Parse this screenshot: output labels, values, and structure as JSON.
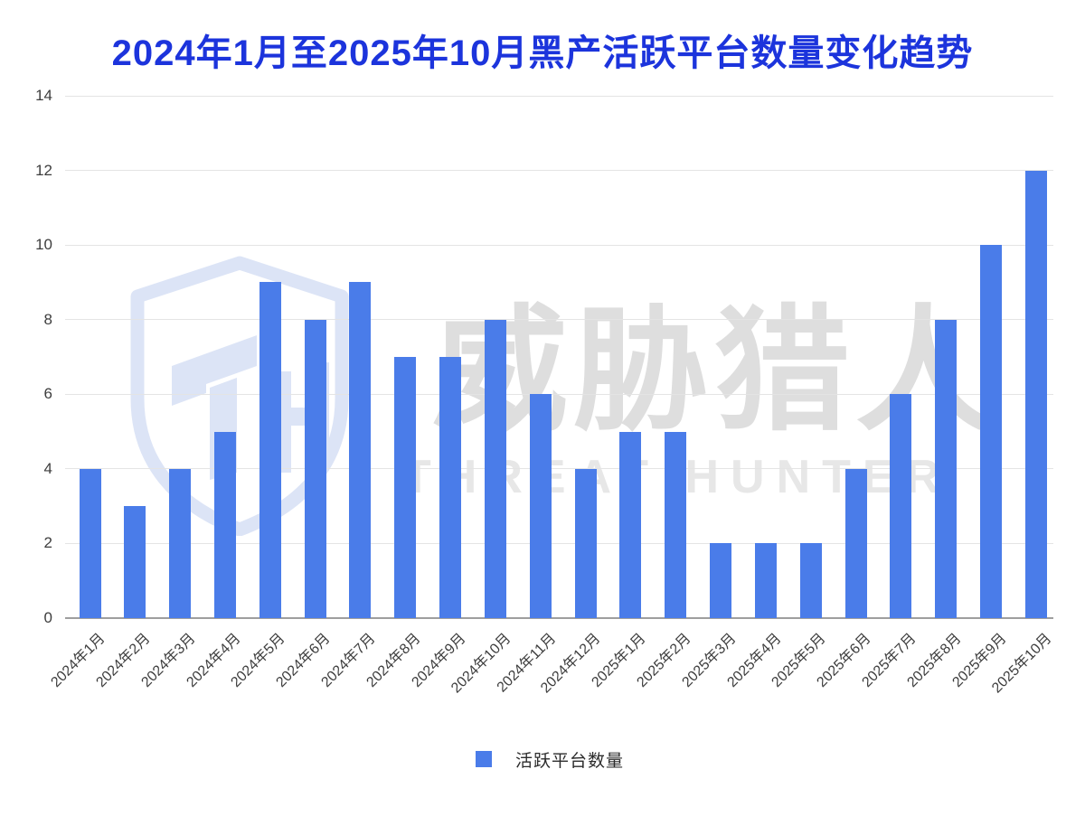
{
  "title": "2024年1月至2025年10月黑产活跃平台数量变化趋势",
  "legend": {
    "label": "活跃平台数量"
  },
  "watermark": {
    "cn": "威胁猎人",
    "en": "THREAT HUNTER",
    "logo": "shield-th-logo"
  },
  "colors": {
    "bar": "#4a7ce9",
    "title": "#1c34dc",
    "grid": "#e4e4e4",
    "axis_baseline": "#9e9e9e",
    "tick_label": "#3d3d3d",
    "watermark_gray": "#dedede",
    "watermark_gray_light": "#e7e7e7",
    "watermark_blue": "#dce4f6"
  },
  "chart_data": {
    "type": "bar",
    "title": "2024年1月至2025年10月黑产活跃平台数量变化趋势",
    "categories": [
      "2024年1月",
      "2024年2月",
      "2024年3月",
      "2024年4月",
      "2024年5月",
      "2024年6月",
      "2024年7月",
      "2024年8月",
      "2024年9月",
      "2024年10月",
      "2024年11月",
      "2024年12月",
      "2025年1月",
      "2025年2月",
      "2025年3月",
      "2025年4月",
      "2025年5月",
      "2025年6月",
      "2025年7月",
      "2025年8月",
      "2025年9月",
      "2025年10月"
    ],
    "series": [
      {
        "name": "活跃平台数量",
        "values": [
          4,
          3,
          4,
          5,
          9,
          8,
          9,
          7,
          7,
          8,
          6,
          4,
          5,
          5,
          2,
          2,
          2,
          4,
          6,
          8,
          10,
          12
        ]
      }
    ],
    "xlabel": "",
    "ylabel": "",
    "ylim": [
      0,
      14
    ],
    "yticks": [
      0,
      2,
      4,
      6,
      8,
      10,
      12,
      14
    ],
    "grid": true,
    "legend_position": "bottom",
    "x_tick_rotation_deg": -45
  }
}
